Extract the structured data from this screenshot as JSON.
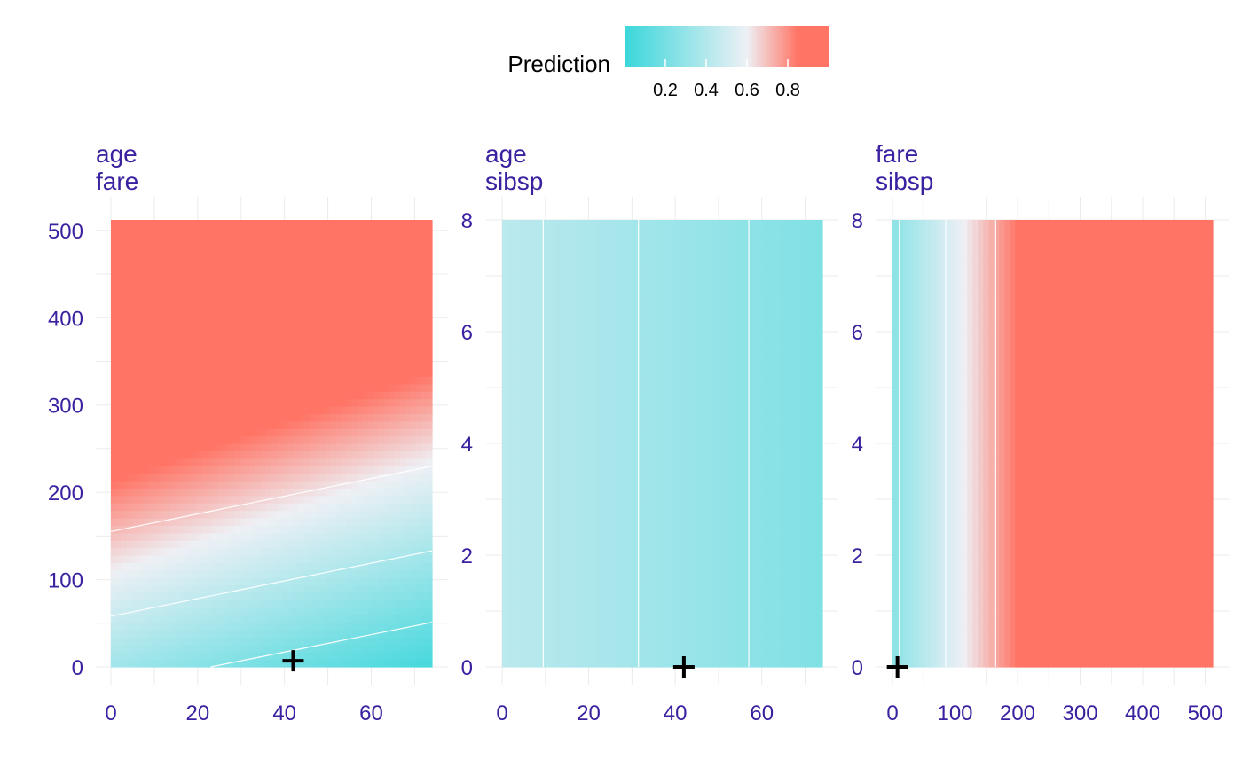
{
  "colors": {
    "low": "#3ad7db",
    "mid": "#eef0f5",
    "high": "#ff7465",
    "text_accent": "#3b21a0",
    "grid": "#ebebeb",
    "contour": "#ffffff",
    "marker": "#000000"
  },
  "legend": {
    "title": "Prediction",
    "ticks": [
      "0.2",
      "0.4",
      "0.6",
      "0.8"
    ],
    "tick_values": [
      0.2,
      0.4,
      0.6,
      0.8
    ],
    "range": [
      0.0,
      1.0
    ]
  },
  "chart_data": [
    {
      "type": "heatmap",
      "title_lines": [
        "age",
        "fare"
      ],
      "xlim": [
        0,
        74
      ],
      "ylim": [
        0,
        512
      ],
      "xticks": [
        0,
        20,
        40,
        60
      ],
      "yticks": [
        0,
        100,
        200,
        300,
        400,
        500
      ],
      "model": "prediction increases with fare and decreases with age",
      "contours": [
        {
          "level": 0.3,
          "from": [
            23,
            0
          ],
          "to": [
            74,
            51
          ]
        },
        {
          "level": 0.5,
          "from": [
            0,
            58
          ],
          "to": [
            74,
            133
          ]
        },
        {
          "level": 0.7,
          "from": [
            0,
            155
          ],
          "to": [
            74,
            230
          ]
        }
      ],
      "observation": {
        "x": 42,
        "y": 7
      }
    },
    {
      "type": "heatmap",
      "title_lines": [
        "age",
        "sibsp"
      ],
      "xlim": [
        0,
        74
      ],
      "ylim": [
        0,
        8
      ],
      "xticks": [
        0,
        20,
        40,
        60
      ],
      "yticks": [
        0,
        2,
        4,
        6,
        8
      ],
      "model": "prediction depends on age only",
      "contours": [
        {
          "level": 0.4,
          "x": 9.5
        },
        {
          "level": 0.35,
          "x": 31.5
        },
        {
          "level": 0.3,
          "x": 57
        }
      ],
      "observation": {
        "x": 42,
        "y": 0
      }
    },
    {
      "type": "heatmap",
      "title_lines": [
        "fare",
        "sibsp"
      ],
      "xlim": [
        0,
        512
      ],
      "ylim": [
        0,
        8
      ],
      "xticks": [
        0,
        100,
        200,
        300,
        400,
        500
      ],
      "yticks": [
        0,
        2,
        4,
        6,
        8
      ],
      "model": "prediction depends on fare only",
      "contours": [
        {
          "level": 0.3,
          "x": 11
        },
        {
          "level": 0.5,
          "x": 85
        },
        {
          "level": 0.7,
          "x": 165
        }
      ],
      "observation": {
        "x": 8,
        "y": 0
      }
    }
  ]
}
